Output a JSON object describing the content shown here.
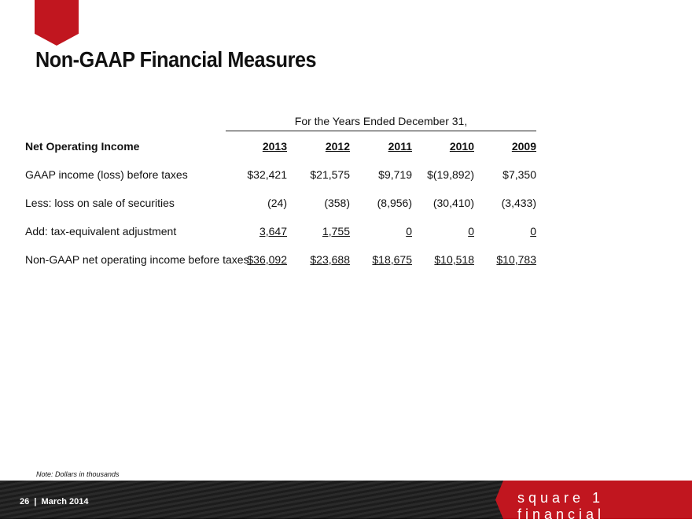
{
  "title": "Non-GAAP Financial Measures",
  "caption": "For the Years Ended December 31,",
  "table": {
    "header": {
      "label": "Net Operating Income",
      "years": [
        "2013",
        "2012",
        "2011",
        "2010",
        "2009"
      ]
    },
    "rows": [
      {
        "label": "GAAP income (loss) before taxes",
        "values": [
          "$32,421",
          "$21,575",
          "$9,719",
          "$(19,892)",
          "$7,350"
        ]
      },
      {
        "label": "Less:  loss on sale of securities",
        "values": [
          "(24)",
          "(358)",
          "(8,956)",
          "(30,410)",
          "(3,433)"
        ]
      },
      {
        "label": "Add:  tax-equivalent adjustment",
        "values": [
          "3,647",
          "1,755",
          "0",
          "0",
          "0"
        ]
      },
      {
        "label": "Non-GAAP net operating income before taxes",
        "values": [
          "$36,092",
          "$23,688",
          "$18,675",
          "$10,518",
          "$10,783"
        ]
      }
    ]
  },
  "note": "Note: Dollars in thousands",
  "footer": {
    "page": "26  |  March 2014",
    "brand": "square 1 financial"
  },
  "colors": {
    "accent": "#c1161f"
  }
}
